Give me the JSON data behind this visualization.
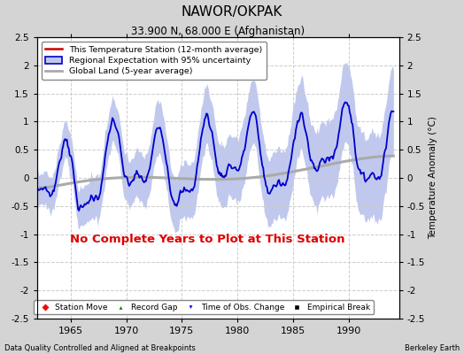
{
  "title": "NAWOR/OKPAK",
  "subtitle": "33.900 N, 68.000 E (Afghanistan)",
  "ylabel": "Temperature Anomaly (°C)",
  "footer_left": "Data Quality Controlled and Aligned at Breakpoints",
  "footer_right": "Berkeley Earth",
  "no_data_text": "No Complete Years to Plot at This Station",
  "xlim": [
    1962.0,
    1994.5
  ],
  "ylim": [
    -2.5,
    2.5
  ],
  "yticks": [
    -2.5,
    -2,
    -1.5,
    -1,
    -0.5,
    0,
    0.5,
    1,
    1.5,
    2,
    2.5
  ],
  "xticks": [
    1965,
    1970,
    1975,
    1980,
    1985,
    1990
  ],
  "fig_bg_color": "#d4d4d4",
  "plot_bg_color": "#ffffff",
  "regional_line_color": "#0000cc",
  "regional_fill_color": "#c0c8ee",
  "station_line_color": "#cc0000",
  "global_land_color": "#aaaaaa",
  "legend_box_color": "#ffffff",
  "no_data_color": "#dd0000",
  "grid_color": "#cccccc",
  "seed": 7
}
